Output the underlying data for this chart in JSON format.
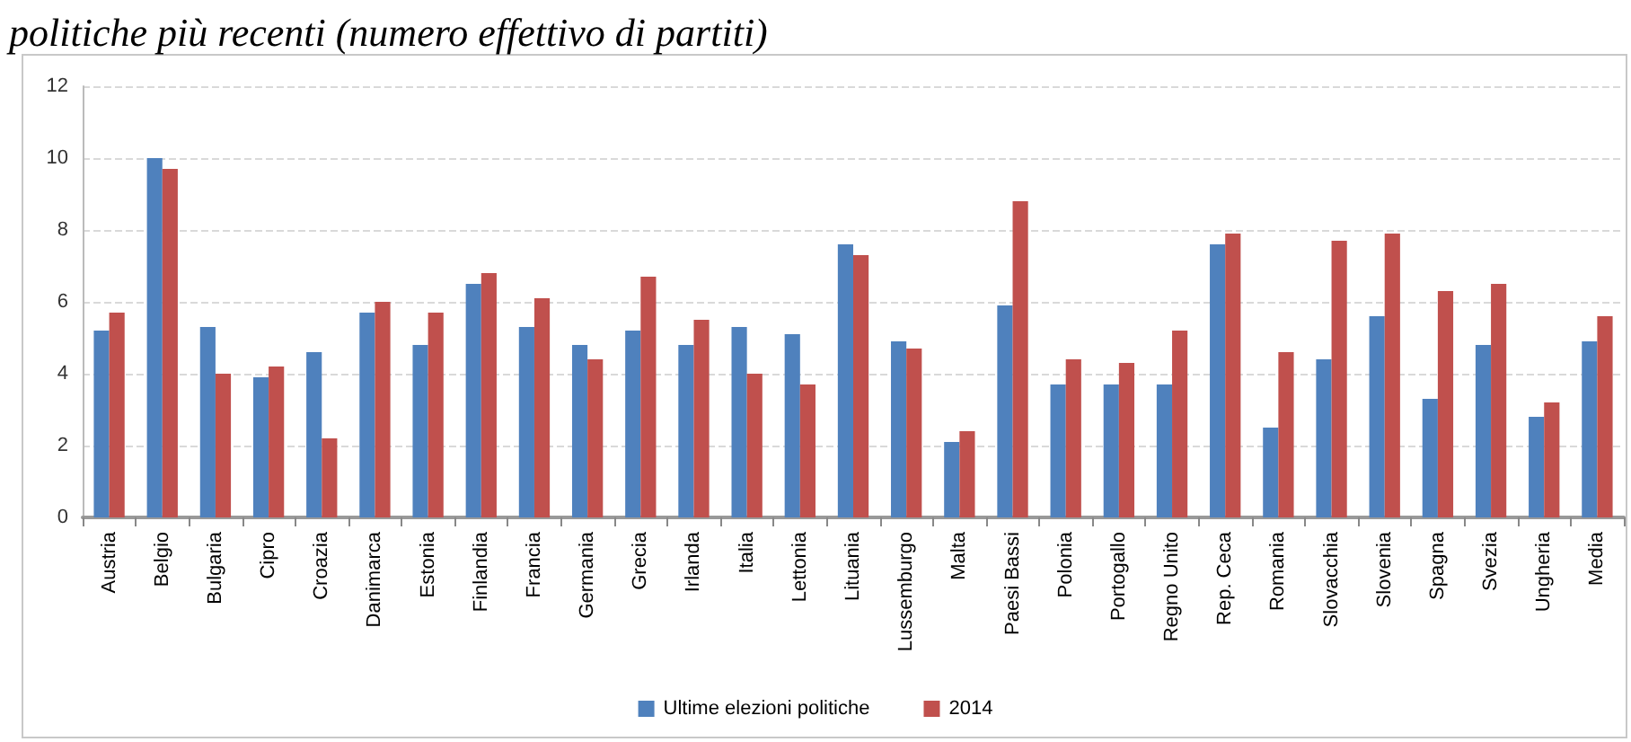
{
  "chart_data": {
    "type": "bar",
    "title": "politiche più recenti (numero effettivo di partiti)",
    "categories": [
      "Austria",
      "Belgio",
      "Bulgaria",
      "Cipro",
      "Croazia",
      "Danimarca",
      "Estonia",
      "Finlandia",
      "Francia",
      "Germania",
      "Grecia",
      "Irlanda",
      "Italia",
      "Lettonia",
      "Lituania",
      "Lussemburgo",
      "Malta",
      "Paesi Bassi",
      "Polonia",
      "Portogallo",
      "Regno Unito",
      "Rep. Ceca",
      "Romania",
      "Slovacchia",
      "Slovenia",
      "Spagna",
      "Svezia",
      "Ungheria",
      "Media"
    ],
    "series": [
      {
        "name": "Ultime elezioni politiche",
        "color": "#4f81bd",
        "values": [
          5.2,
          10.0,
          5.3,
          3.9,
          4.6,
          5.7,
          4.8,
          6.5,
          5.3,
          4.8,
          5.2,
          4.8,
          5.3,
          5.1,
          7.6,
          4.9,
          2.1,
          5.9,
          3.7,
          3.7,
          3.7,
          7.6,
          2.5,
          4.4,
          5.6,
          3.3,
          4.8,
          2.8,
          4.9
        ]
      },
      {
        "name": "2014",
        "color": "#c0504d",
        "values": [
          5.7,
          9.7,
          4.0,
          4.2,
          2.2,
          6.0,
          5.7,
          6.8,
          6.1,
          4.4,
          6.7,
          5.5,
          4.0,
          3.7,
          7.3,
          4.7,
          2.4,
          8.8,
          4.4,
          4.3,
          5.2,
          7.9,
          4.6,
          7.7,
          7.9,
          6.3,
          6.5,
          3.2,
          5.6
        ]
      }
    ],
    "ylim": [
      0,
      12
    ],
    "yticks": [
      0,
      2,
      4,
      6,
      8,
      10,
      12
    ],
    "grid": "y",
    "legend": "bottom"
  }
}
